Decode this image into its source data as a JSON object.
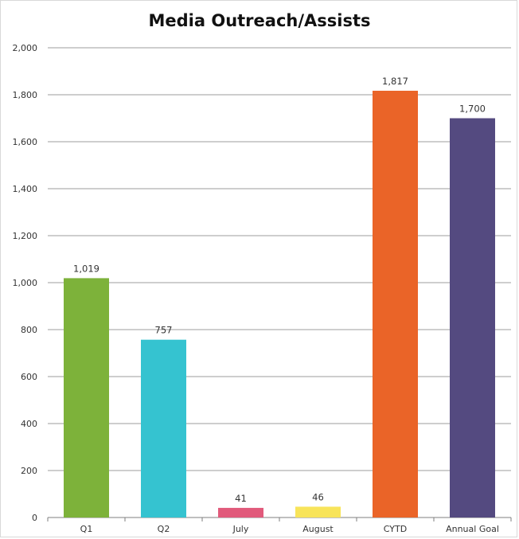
{
  "chart_data": {
    "type": "bar",
    "title": "Media Outreach/Assists",
    "xlabel": "",
    "ylabel": "",
    "categories": [
      "Q1",
      "Q2",
      "July",
      "August",
      "CYTD",
      "Annual Goal"
    ],
    "values": [
      1019,
      757,
      41,
      46,
      1817,
      1700
    ],
    "data_labels": [
      "1,019",
      "757",
      "41",
      "46",
      "1,817",
      "1,700"
    ],
    "colors": [
      "#7db23a",
      "#35c3d0",
      "#e15a7b",
      "#f8e45a",
      "#ea6428",
      "#544a80"
    ],
    "ylim": [
      0,
      2000
    ],
    "yticks": [
      0,
      200,
      400,
      600,
      800,
      1000,
      1200,
      1400,
      1600,
      1800,
      2000
    ],
    "ytick_labels": [
      "0",
      "200",
      "400",
      "600",
      "800",
      "1,000",
      "1,200",
      "1,400",
      "1,600",
      "1,800",
      "2,000"
    ],
    "grid": true,
    "legend": "none"
  }
}
